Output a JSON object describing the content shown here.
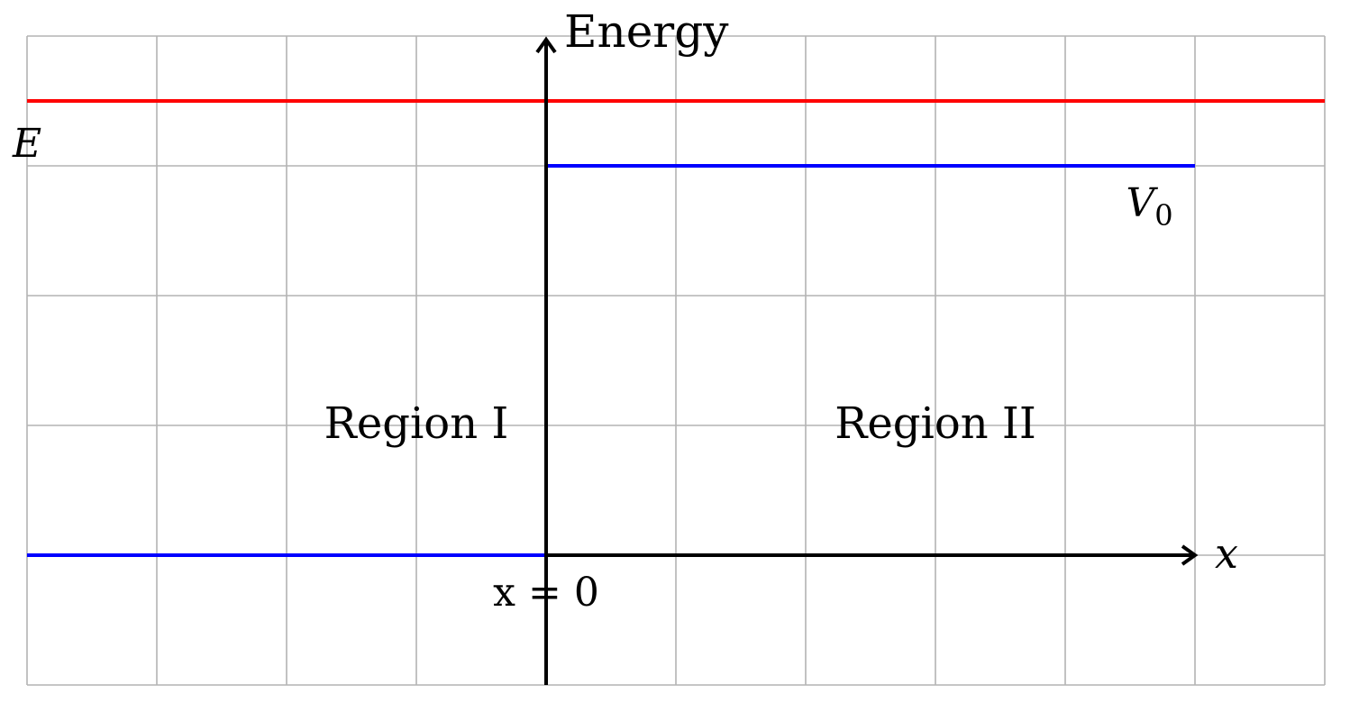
{
  "axes": {
    "y_label": "Energy",
    "x_label": "x",
    "origin_label": "x = 0"
  },
  "levels": {
    "energy": {
      "label": "E",
      "value": 3.5,
      "color": "#ff0000"
    },
    "barrier": {
      "label": "V",
      "subscript": "0",
      "value": 3.0,
      "color": "#0000ff"
    }
  },
  "regions": {
    "left": "Region I",
    "right": "Region II"
  },
  "potential": {
    "color": "#0000ff",
    "points": [
      [
        -4,
        0
      ],
      [
        0,
        0
      ],
      [
        0,
        3
      ],
      [
        5,
        3
      ]
    ]
  },
  "grid": {
    "x_range": [
      -4,
      6
    ],
    "y_range": [
      -1,
      4
    ],
    "step": 1,
    "color": "#b3b3b3"
  },
  "axis_color": "#000000"
}
